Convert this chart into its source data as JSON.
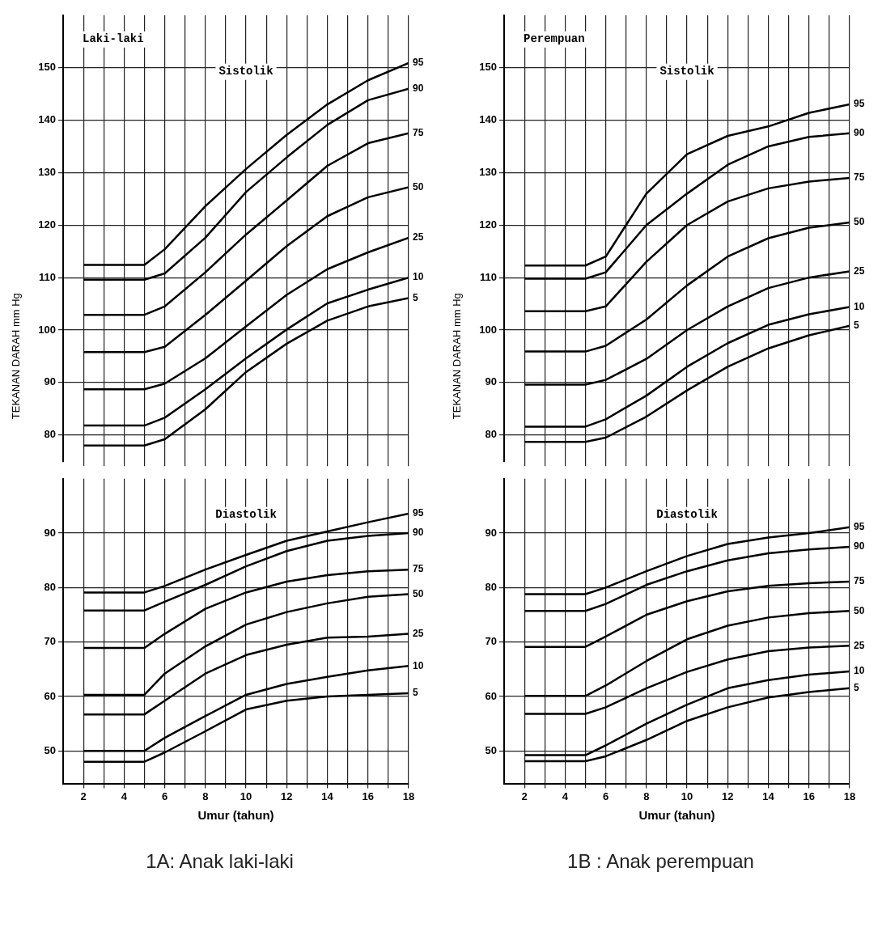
{
  "chart_data": [
    {
      "type": "line",
      "ylabel": "TEKANAN DARAH mm Hg",
      "annotations": [
        "Laki-laki",
        "Sistolik"
      ],
      "tick_labels": "y",
      "xlim": [
        1,
        18
      ],
      "xticks": [
        2,
        {
          "value": 3,
          "label": null
        },
        4,
        {
          "value": 5,
          "label": null
        },
        6,
        {
          "value": 7,
          "label": null
        },
        8,
        {
          "value": 9,
          "label": null
        },
        10,
        {
          "value": 11,
          "label": null
        },
        12,
        {
          "value": 13,
          "label": null
        },
        14,
        {
          "value": 15,
          "label": null
        },
        16,
        {
          "value": 17,
          "label": null
        },
        18
      ],
      "ylim": [
        75,
        160
      ],
      "yticks": [
        80,
        90,
        100,
        110,
        120,
        130,
        140,
        150
      ],
      "grid": true,
      "line_style": "solid",
      "x": [
        2,
        5,
        6,
        8,
        10,
        12,
        14,
        16,
        18
      ],
      "series": [
        {
          "name": "95",
          "color": "#000000",
          "values": [
            112.4,
            112.4,
            115.4,
            123.6,
            130.7,
            137.2,
            143,
            147.6,
            150.9
          ]
        },
        {
          "name": "90",
          "color": "#000000",
          "values": [
            109.6,
            109.6,
            110.8,
            117.6,
            126.3,
            132.9,
            139.1,
            143.8,
            146
          ]
        },
        {
          "name": "75",
          "color": "#000000",
          "values": [
            102.9,
            102.9,
            104.5,
            111,
            118.2,
            124.7,
            131.3,
            135.6,
            137.5
          ]
        },
        {
          "name": "50",
          "color": "#000000",
          "values": [
            95.8,
            95.8,
            96.8,
            102.9,
            109.4,
            116,
            121.7,
            125.3,
            127.2
          ]
        },
        {
          "name": "25",
          "color": "#000000",
          "values": [
            88.7,
            88.7,
            89.8,
            94.6,
            100.7,
            106.7,
            111.6,
            114.8,
            117.6
          ]
        },
        {
          "name": "10",
          "color": "#000000",
          "values": [
            81.8,
            81.8,
            83.3,
            88.7,
            94.6,
            100.1,
            105.1,
            107.7,
            110
          ]
        },
        {
          "name": "5",
          "color": "#000000",
          "values": [
            78,
            78,
            79.2,
            84.9,
            92,
            97.4,
            101.8,
            104.5,
            106.1
          ]
        }
      ]
    },
    {
      "type": "line",
      "title": "1A: Anak laki-laki",
      "xlabel": "Umur (tahun)",
      "annotations": [
        "Diastolik"
      ],
      "xlim": [
        1,
        18
      ],
      "xticks": [
        2,
        {
          "value": 3,
          "label": null
        },
        4,
        {
          "value": 5,
          "label": null
        },
        6,
        {
          "value": 7,
          "label": null
        },
        8,
        {
          "value": 9,
          "label": null
        },
        10,
        {
          "value": 11,
          "label": null
        },
        12,
        {
          "value": 13,
          "label": null
        },
        14,
        {
          "value": 15,
          "label": null
        },
        16,
        {
          "value": 17,
          "label": null
        },
        18
      ],
      "ylim": [
        44,
        100
      ],
      "yticks": [
        50,
        60,
        70,
        80,
        90
      ],
      "grid": true,
      "line_style": "solid",
      "x": [
        2,
        5,
        6,
        8,
        10,
        12,
        14,
        16,
        18
      ],
      "series": [
        {
          "name": "95",
          "color": "#000000",
          "values": [
            79.1,
            79.1,
            80.3,
            83.3,
            86,
            88.6,
            90.3,
            92,
            93.6
          ]
        },
        {
          "name": "90",
          "color": "#000000",
          "values": [
            75.8,
            75.8,
            77.4,
            80.5,
            83.9,
            86.7,
            88.6,
            89.5,
            90
          ]
        },
        {
          "name": "75",
          "color": "#000000",
          "values": [
            68.9,
            68.9,
            71.5,
            76.1,
            79.1,
            81.1,
            82.3,
            83,
            83.3
          ]
        },
        {
          "name": "50",
          "color": "#000000",
          "values": [
            60.3,
            60.3,
            64.2,
            69.2,
            73.2,
            75.5,
            77.1,
            78.3,
            78.8
          ]
        },
        {
          "name": "25",
          "color": "#000000",
          "values": [
            56.7,
            56.7,
            59.2,
            64.2,
            67.6,
            69.5,
            70.8,
            71,
            71.5
          ]
        },
        {
          "name": "10",
          "color": "#000000",
          "values": [
            50,
            50,
            52.4,
            56.4,
            60.3,
            62.3,
            63.6,
            64.8,
            65.6
          ]
        },
        {
          "name": "5",
          "color": "#000000",
          "values": [
            48,
            48,
            49.7,
            53.6,
            57.6,
            59.2,
            60,
            60.3,
            60.6
          ]
        }
      ]
    },
    {
      "type": "line",
      "ylabel": "TEKANAN DARAH mm Hg",
      "annotations": [
        "Perempuan",
        "Sistolik"
      ],
      "tick_labels": "y",
      "xlim": [
        1,
        18
      ],
      "xticks": [
        2,
        {
          "value": 3,
          "label": null
        },
        4,
        {
          "value": 5,
          "label": null
        },
        6,
        {
          "value": 7,
          "label": null
        },
        8,
        {
          "value": 9,
          "label": null
        },
        10,
        {
          "value": 11,
          "label": null
        },
        12,
        {
          "value": 13,
          "label": null
        },
        14,
        {
          "value": 15,
          "label": null
        },
        16,
        {
          "value": 17,
          "label": null
        },
        18
      ],
      "ylim": [
        75,
        160
      ],
      "yticks": [
        80,
        90,
        100,
        110,
        120,
        130,
        140,
        150
      ],
      "grid": true,
      "line_style": "solid",
      "x": [
        2,
        5,
        6,
        8,
        10,
        12,
        14,
        16,
        18
      ],
      "series": [
        {
          "name": "95",
          "color": "#000000",
          "values": [
            112.3,
            112.3,
            114,
            126,
            133.5,
            137,
            138.8,
            141.4,
            143
          ]
        },
        {
          "name": "90",
          "color": "#000000",
          "values": [
            109.8,
            109.8,
            111,
            120,
            126,
            131.5,
            135,
            136.8,
            137.5
          ]
        },
        {
          "name": "75",
          "color": "#000000",
          "values": [
            103.6,
            103.6,
            104.5,
            113,
            120,
            124.5,
            127,
            128.3,
            129
          ]
        },
        {
          "name": "50",
          "color": "#000000",
          "values": [
            95.9,
            95.9,
            97,
            102,
            108.5,
            114,
            117.5,
            119.5,
            120.5
          ]
        },
        {
          "name": "25",
          "color": "#000000",
          "values": [
            89.6,
            89.6,
            90.5,
            94.5,
            100,
            104.5,
            108,
            110,
            111.2
          ]
        },
        {
          "name": "10",
          "color": "#000000",
          "values": [
            81.6,
            81.6,
            83,
            87.5,
            93,
            97.5,
            101,
            103,
            104.4
          ]
        },
        {
          "name": "5",
          "color": "#000000",
          "values": [
            78.7,
            78.7,
            79.5,
            83.5,
            88.5,
            93,
            96.5,
            99,
            100.8
          ]
        }
      ]
    },
    {
      "type": "line",
      "title": "1B : Anak perempuan",
      "xlabel": "Umur (tahun)",
      "annotations": [
        "Diastolik"
      ],
      "xlim": [
        1,
        18
      ],
      "xticks": [
        2,
        {
          "value": 3,
          "label": null
        },
        4,
        {
          "value": 5,
          "label": null
        },
        6,
        {
          "value": 7,
          "label": null
        },
        8,
        {
          "value": 9,
          "label": null
        },
        10,
        {
          "value": 11,
          "label": null
        },
        12,
        {
          "value": 13,
          "label": null
        },
        14,
        {
          "value": 15,
          "label": null
        },
        16,
        {
          "value": 17,
          "label": null
        },
        18
      ],
      "ylim": [
        44,
        100
      ],
      "yticks": [
        50,
        60,
        70,
        80,
        90
      ],
      "grid": true,
      "line_style": "solid",
      "x": [
        2,
        5,
        6,
        8,
        10,
        12,
        14,
        16,
        18
      ],
      "series": [
        {
          "name": "95",
          "color": "#000000",
          "values": [
            78.8,
            78.8,
            80,
            83,
            85.8,
            88,
            89.2,
            90,
            91.1
          ]
        },
        {
          "name": "90",
          "color": "#000000",
          "values": [
            75.7,
            75.7,
            77,
            80.5,
            83,
            85,
            86.3,
            87,
            87.5
          ]
        },
        {
          "name": "75",
          "color": "#000000",
          "values": [
            69.1,
            69.1,
            71,
            75,
            77.5,
            79.3,
            80.3,
            80.8,
            81.1
          ]
        },
        {
          "name": "50",
          "color": "#000000",
          "values": [
            60.1,
            60.1,
            62,
            66.5,
            70.5,
            73,
            74.5,
            75.3,
            75.7
          ]
        },
        {
          "name": "25",
          "color": "#000000",
          "values": [
            56.8,
            56.8,
            58,
            61.5,
            64.5,
            66.8,
            68.3,
            69,
            69.3
          ]
        },
        {
          "name": "10",
          "color": "#000000",
          "values": [
            49.2,
            49.2,
            51,
            55,
            58.5,
            61.5,
            63,
            64,
            64.6
          ]
        },
        {
          "name": "5",
          "color": "#000000",
          "values": [
            48.1,
            48.1,
            49,
            52,
            55.5,
            58,
            59.8,
            60.8,
            61.5
          ]
        }
      ]
    }
  ]
}
